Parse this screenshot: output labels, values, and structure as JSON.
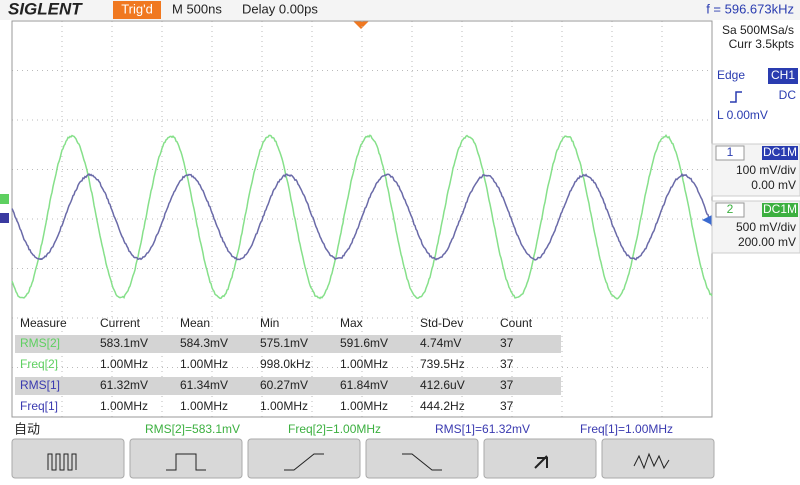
{
  "header": {
    "brand": "SIGLENT",
    "trigger_state": "Trig'd",
    "timebase": "M 500ns",
    "delay": "Delay 0.00ps",
    "frequency": "f = 596.673kHz"
  },
  "side": {
    "sample_rate": "Sa 500MSa/s",
    "memory": "Curr 3.5kpts",
    "trigger_type": "Edge",
    "trigger_source": "CH1",
    "trigger_coupling": "DC",
    "trigger_level": "L  0.00mV",
    "channels": [
      {
        "number": "1",
        "coupling": "DC1M",
        "scale": "100 mV/div",
        "offset": "0.00 mV"
      },
      {
        "number": "2",
        "coupling": "DC1M",
        "scale": "500 mV/div",
        "offset": "200.00 mV"
      }
    ]
  },
  "measure": {
    "headers": [
      "Measure",
      "Current",
      "Mean",
      "Min",
      "Max",
      "Std-Dev",
      "Count"
    ],
    "rows": [
      [
        "RMS[2]",
        "583.1mV",
        "584.3mV",
        "575.1mV",
        "591.6mV",
        "4.74mV",
        "37"
      ],
      [
        "Freq[2]",
        "1.00MHz",
        "1.00MHz",
        "998.0kHz",
        "1.00MHz",
        "739.5Hz",
        "37"
      ],
      [
        "RMS[1]",
        "61.32mV",
        "61.34mV",
        "60.27mV",
        "61.84mV",
        "412.6uV",
        "37"
      ],
      [
        "Freq[1]",
        "1.00MHz",
        "1.00MHz",
        "1.00MHz",
        "1.00MHz",
        "444.2Hz",
        "37"
      ]
    ]
  },
  "status": {
    "mode": "自动",
    "items": [
      "RMS[2]=583.1mV",
      "Freq[2]=1.00MHz",
      "RMS[1]=61.32mV",
      "Freq[1]=1.00MHz"
    ]
  }
}
